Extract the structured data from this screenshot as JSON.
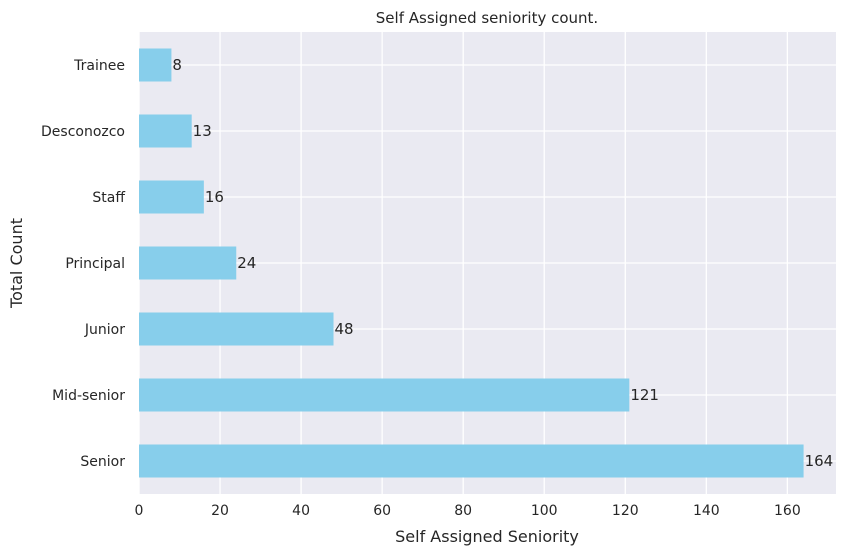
{
  "chart_data": {
    "type": "bar",
    "orientation": "horizontal",
    "title": "Self Assigned seniority count.",
    "xlabel": "Self Assigned Seniority",
    "ylabel": "Total Count",
    "categories": [
      "Senior",
      "Mid-senior",
      "Junior",
      "Principal",
      "Staff",
      "Desconozco",
      "Trainee"
    ],
    "values": [
      164,
      121,
      48,
      24,
      16,
      13,
      8
    ],
    "xlim": [
      0,
      172
    ],
    "xticks": [
      0,
      20,
      40,
      60,
      80,
      100,
      120,
      140,
      160
    ],
    "grid": true,
    "bar_color": "#87CEEB",
    "plot_background": "#EAEAF2",
    "grid_color": "#FFFFFF"
  }
}
